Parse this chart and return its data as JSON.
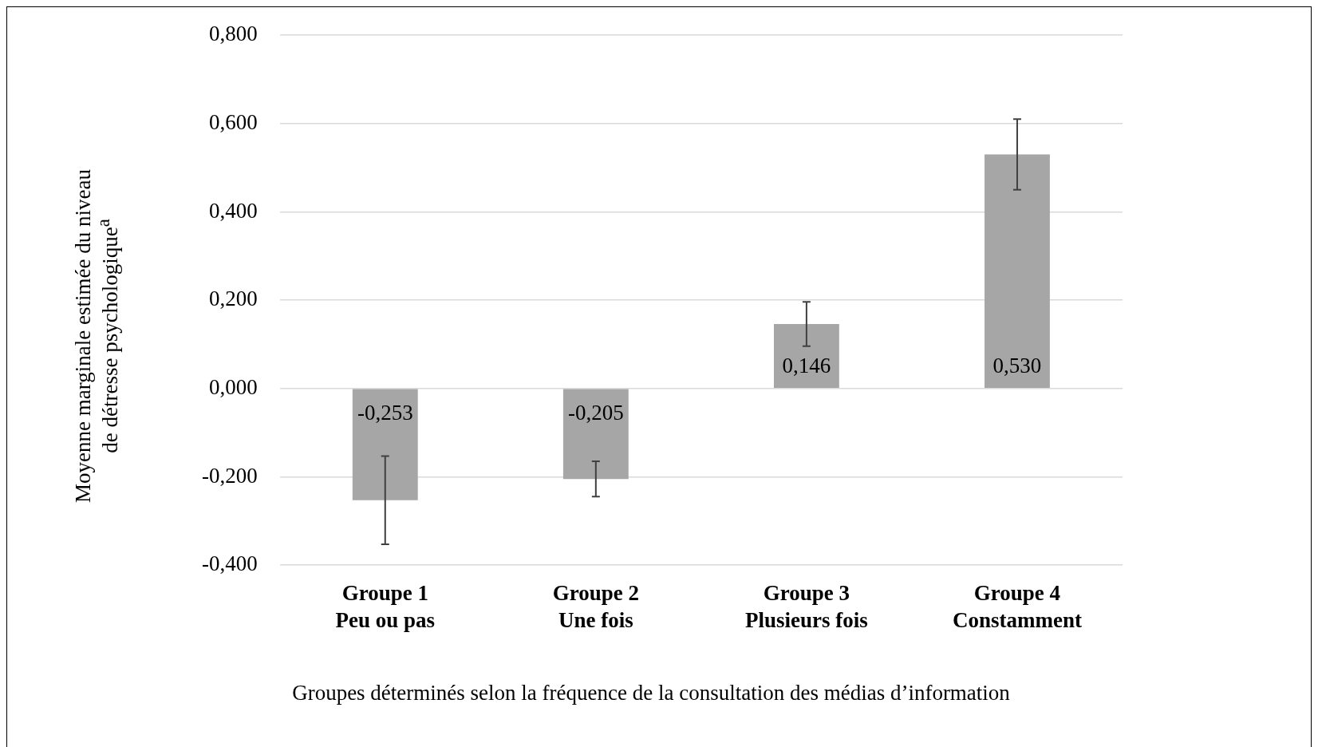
{
  "chart_data": {
    "type": "bar",
    "xlabel": "Groupes déterminés selon la fréquence de la consultation des médias d’information",
    "ylabel": "Moyenne marginale estimée du niveau de détresse psychologique$^{a}$",
    "categories": [
      "Groupe 1\nPeu ou pas",
      "Groupe 2\nUne fois",
      "Groupe 3\nPlusieurs fois",
      "Groupe 4\nConstamment"
    ],
    "values": [
      -0.253,
      -0.205,
      0.146,
      0.53
    ],
    "color": "#a6a6a6",
    "errors": [
      0.1,
      0.04,
      0.05,
      0.08
    ],
    "value_labels": [
      "-0,253",
      "-0,205",
      "0,146",
      "0,530"
    ],
    "ylim": [
      -0.4,
      0.8
    ],
    "yticks": [
      {
        "value": -0.4,
        "label": "-0,400"
      },
      {
        "value": -0.2,
        "label": "-0,200"
      },
      {
        "value": 0,
        "label": "0,000"
      },
      {
        "value": 0.2,
        "label": "0,200"
      },
      {
        "value": 0.4,
        "label": "0,400"
      },
      {
        "value": 0.6,
        "label": "0,600"
      },
      {
        "value": 0.8,
        "label": "0,800"
      }
    ],
    "grid": "y",
    "legend": false
  }
}
